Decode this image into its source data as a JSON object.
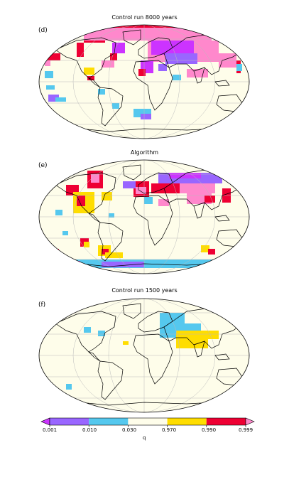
{
  "panels": [
    {
      "letter": "(d)",
      "title": "Control run 8000 years"
    },
    {
      "letter": "(e)",
      "title": "Algorithm"
    },
    {
      "letter": "(f)",
      "title": "Control run 1500 years"
    }
  ],
  "colorbar": {
    "ticks": [
      "0.001",
      "0.010",
      "0.030",
      "0.970",
      "0.990",
      "0.999"
    ],
    "label": "q",
    "colors": {
      "below": "#cc33ff",
      "c1": "#9966ff",
      "c2": "#55c8ee",
      "c3": "#fefdea",
      "c4": "#ffdd00",
      "c5": "#ee0033",
      "above": "#ff88cc"
    }
  },
  "map_colors": {
    "ocean": "#fefdea",
    "land_outline": "#000000",
    "graticule": "#bbbbbb"
  }
}
